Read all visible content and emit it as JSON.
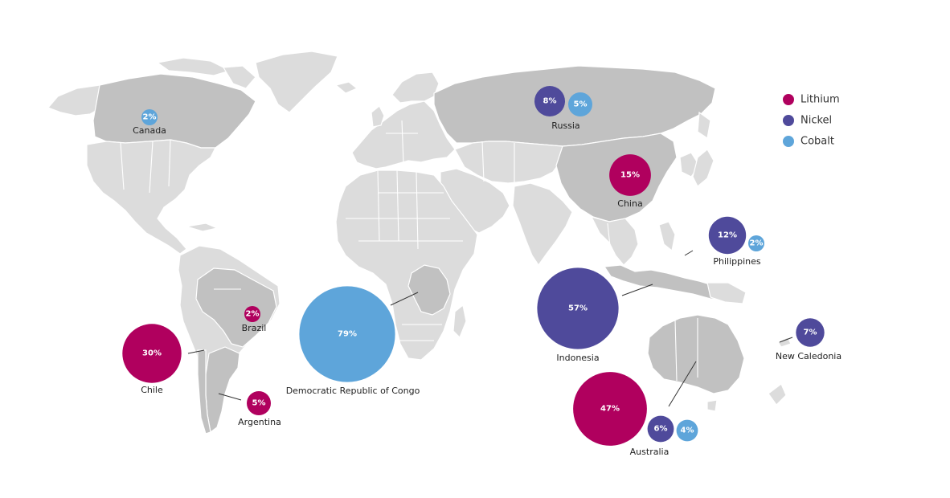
{
  "legend": [
    {
      "key": "lithium",
      "label": "Lithium"
    },
    {
      "key": "nickel",
      "label": "Nickel"
    },
    {
      "key": "cobalt",
      "label": "Cobalt"
    }
  ],
  "colors": {
    "lithium": "#b0005e",
    "nickel": "#4f4a9b",
    "cobalt": "#5ea5da",
    "land": "#dcdcdc",
    "land_highlight": "#c1c1c1"
  },
  "countries": [
    {
      "name": "Canada",
      "shares": [
        {
          "mineral": "cobalt",
          "value": 2,
          "label": "2%"
        }
      ]
    },
    {
      "name": "Russia",
      "shares": [
        {
          "mineral": "nickel",
          "value": 8,
          "label": "8%"
        },
        {
          "mineral": "cobalt",
          "value": 5,
          "label": "5%"
        }
      ]
    },
    {
      "name": "China",
      "shares": [
        {
          "mineral": "lithium",
          "value": 15,
          "label": "15%"
        }
      ]
    },
    {
      "name": "Philippines",
      "shares": [
        {
          "mineral": "nickel",
          "value": 12,
          "label": "12%"
        },
        {
          "mineral": "cobalt",
          "value": 2,
          "label": "2%"
        }
      ]
    },
    {
      "name": "Indonesia",
      "shares": [
        {
          "mineral": "nickel",
          "value": 57,
          "label": "57%"
        }
      ]
    },
    {
      "name": "New Caledonia",
      "shares": [
        {
          "mineral": "nickel",
          "value": 7,
          "label": "7%"
        }
      ]
    },
    {
      "name": "Australia",
      "shares": [
        {
          "mineral": "lithium",
          "value": 47,
          "label": "47%"
        },
        {
          "mineral": "nickel",
          "value": 6,
          "label": "6%"
        },
        {
          "mineral": "cobalt",
          "value": 4,
          "label": "4%"
        }
      ]
    },
    {
      "name": "Democratic Republic of Congo",
      "shares": [
        {
          "mineral": "cobalt",
          "value": 79,
          "label": "79%"
        }
      ]
    },
    {
      "name": "Brazil",
      "shares": [
        {
          "mineral": "lithium",
          "value": 2,
          "label": "2%"
        }
      ]
    },
    {
      "name": "Chile",
      "shares": [
        {
          "mineral": "lithium",
          "value": 30,
          "label": "30%"
        }
      ]
    },
    {
      "name": "Argentina",
      "shares": [
        {
          "mineral": "lithium",
          "value": 5,
          "label": "5%"
        }
      ]
    }
  ]
}
